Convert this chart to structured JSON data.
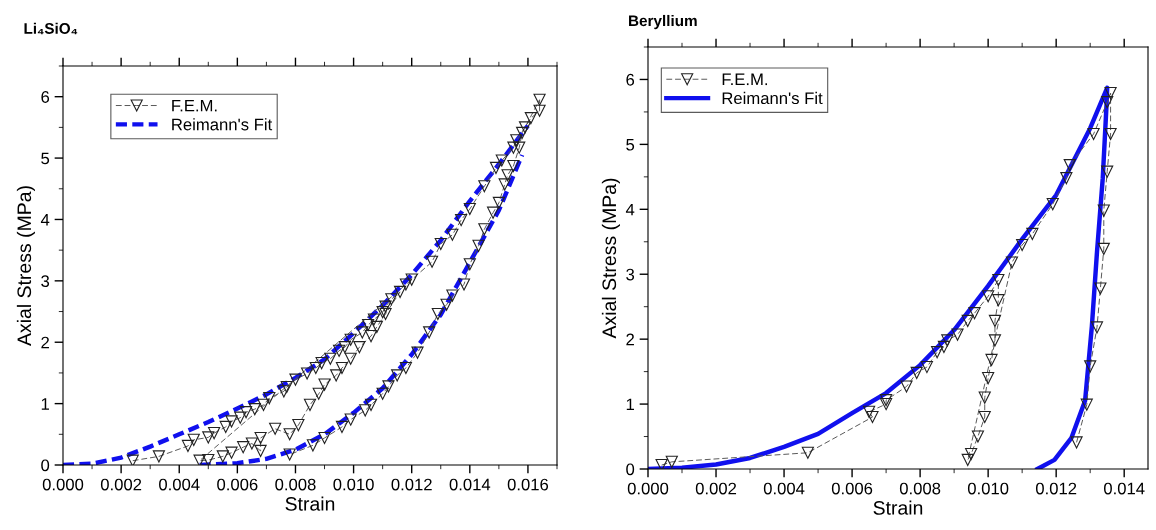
{
  "chart_data": [
    {
      "type": "line",
      "title": "Li₄SiO₄",
      "xlabel": "Strain",
      "ylabel": "Axial Stress (MPa)",
      "xlim": [
        0,
        0.017
      ],
      "ylim": [
        0,
        6.5
      ],
      "xticks": [
        {
          "value": 0,
          "label": "0.000"
        },
        {
          "value": 0.002,
          "label": "0.002"
        },
        {
          "value": 0.004,
          "label": "0.004"
        },
        {
          "value": 0.006,
          "label": "0.006"
        },
        {
          "value": 0.008,
          "label": "0.008"
        },
        {
          "value": 0.01,
          "label": "0.010"
        },
        {
          "value": 0.012,
          "label": "0.012"
        },
        {
          "value": 0.014,
          "label": "0.014"
        },
        {
          "value": 0.016,
          "label": "0.016"
        }
      ],
      "yticks": [
        0,
        1,
        2,
        3,
        4,
        5,
        6
      ],
      "legend": "top left",
      "grid": false,
      "series": [
        {
          "name": "F.E.M.",
          "color": "#555555",
          "marker": "triangle",
          "line_style": "dashed",
          "x": [
            0.0024,
            0.0033,
            0.0043,
            0.0045,
            0.005,
            0.0052,
            0.0056,
            0.0058,
            0.0061,
            0.0063,
            0.0066,
            0.0069,
            0.0071,
            0.0076,
            0.0077,
            0.008,
            0.0084,
            0.0087,
            0.0089,
            0.0092,
            0.0095,
            0.0097,
            0.0099,
            0.0103,
            0.0105,
            0.0107,
            0.011,
            0.0111,
            0.0113,
            0.0116,
            0.0111,
            0.0108,
            0.0106,
            0.0102,
            0.0099,
            0.0096,
            0.0094,
            0.009,
            0.0088,
            0.0085,
            0.0081,
            0.0078,
            0.0073,
            0.0068,
            0.0068,
            0.0065,
            0.0062,
            0.0058,
            0.0055,
            0.005,
            0.0047,
            0.0118,
            0.012,
            0.0127,
            0.013,
            0.0134,
            0.0137,
            0.014,
            0.0145,
            0.0149,
            0.0151,
            0.0155,
            0.0156,
            0.0159,
            0.0161,
            0.0164,
            0.0164,
            0.0158,
            0.0157,
            0.0155,
            0.0153,
            0.0152,
            0.015,
            0.0148,
            0.0145,
            0.0143,
            0.014,
            0.0138,
            0.0134,
            0.0132,
            0.0129,
            0.0126,
            0.0122,
            0.0118,
            0.0115,
            0.0112,
            0.011,
            0.0106,
            0.0104,
            0.0099,
            0.0096,
            0.009,
            0.0086,
            0.0078
          ],
          "values": [
            0.07,
            0.14,
            0.31,
            0.41,
            0.45,
            0.52,
            0.62,
            0.71,
            0.77,
            0.86,
            0.91,
            0.98,
            1.09,
            1.2,
            1.27,
            1.39,
            1.49,
            1.58,
            1.66,
            1.73,
            1.86,
            1.92,
            2.04,
            2.16,
            2.28,
            2.37,
            2.49,
            2.58,
            2.7,
            2.82,
            2.46,
            2.25,
            2.1,
            1.92,
            1.73,
            1.58,
            1.46,
            1.31,
            1.16,
            0.98,
            0.65,
            0.5,
            0.59,
            0.44,
            0.23,
            0.35,
            0.29,
            0.2,
            0.14,
            0.08,
            0.07,
            2.94,
            3.02,
            3.31,
            3.6,
            3.75,
            3.99,
            4.17,
            4.54,
            4.84,
            4.96,
            5.17,
            5.29,
            5.5,
            5.65,
            5.77,
            5.95,
            5.41,
            5.17,
            4.87,
            4.72,
            4.57,
            4.27,
            4.11,
            3.84,
            3.57,
            3.27,
            2.94,
            2.76,
            2.61,
            2.46,
            2.16,
            1.83,
            1.58,
            1.46,
            1.28,
            1.16,
            0.98,
            0.89,
            0.74,
            0.62,
            0.44,
            0.32,
            0.17
          ]
        },
        {
          "name": "Reimann's Fit",
          "color": "#1010ee",
          "marker": "none",
          "line_style": "dashed",
          "x": [
            0,
            0.001,
            0.002,
            0.003,
            0.004,
            0.005,
            0.006,
            0.007,
            0.008,
            0.009,
            0.01,
            0.011,
            0.012,
            0.013,
            0.014,
            0.015,
            0.016
          ],
          "values": [
            0,
            0.02,
            0.12,
            0.3,
            0.5,
            0.7,
            0.92,
            1.15,
            1.42,
            1.72,
            2.15,
            2.6,
            3.1,
            3.66,
            4.3,
            4.9,
            5.53
          ]
        },
        {
          "color": "#1010ee",
          "marker": "none",
          "line_style": "dashed",
          "x": [
            0.0047,
            0.006,
            0.007,
            0.008,
            0.009,
            0.01,
            0.011,
            0.012,
            0.013,
            0.014,
            0.015,
            0.0158
          ],
          "values": [
            0,
            0.03,
            0.1,
            0.25,
            0.5,
            0.85,
            1.25,
            1.8,
            2.45,
            3.3,
            4.15,
            5.05
          ]
        }
      ]
    },
    {
      "type": "line",
      "title": "Beryllium",
      "xlabel": "Strain",
      "ylabel": "Axial Stress (MPa)",
      "xlim": [
        0,
        0.0147
      ],
      "ylim": [
        0,
        6.5
      ],
      "xticks": [
        {
          "value": 0,
          "label": "0.000"
        },
        {
          "value": 0.002,
          "label": "0.002"
        },
        {
          "value": 0.004,
          "label": "0.004"
        },
        {
          "value": 0.006,
          "label": "0.006"
        },
        {
          "value": 0.008,
          "label": "0.008"
        },
        {
          "value": 0.01,
          "label": "0.010"
        },
        {
          "value": 0.012,
          "label": "0.012"
        },
        {
          "value": 0.014,
          "label": "0.014"
        }
      ],
      "yticks": [
        0,
        1,
        2,
        3,
        4,
        5,
        6
      ],
      "legend": "top left",
      "grid": false,
      "series": [
        {
          "name": "F.E.M.",
          "color": "#555555",
          "marker": "triangle",
          "line_style": "dashed",
          "x": [
            0.0004,
            0.0007,
            0.0047,
            0.0066,
            0.0065,
            0.007,
            0.007,
            0.0076,
            0.0079,
            0.0082,
            0.0085,
            0.0087,
            0.0088,
            0.0091,
            0.0094,
            0.0096,
            0.01,
            0.0103,
            0.0103,
            0.0102,
            0.0102,
            0.0101,
            0.01,
            0.0099,
            0.0099,
            0.0097,
            0.0095,
            0.0094,
            0.0107,
            0.011,
            0.0113,
            0.0119,
            0.0123,
            0.0124,
            0.0131,
            0.0135,
            0.0136,
            0.0136,
            0.0135,
            0.0134,
            0.0134,
            0.0133,
            0.0132,
            0.013,
            0.0129,
            0.0126
          ],
          "values": [
            0.06,
            0.11,
            0.25,
            0.8,
            0.88,
            1.0,
            1.06,
            1.27,
            1.48,
            1.57,
            1.8,
            1.88,
            1.98,
            2.07,
            2.28,
            2.4,
            2.66,
            2.91,
            2.6,
            2.28,
            1.98,
            1.68,
            1.4,
            1.1,
            0.8,
            0.5,
            0.23,
            0.14,
            3.18,
            3.45,
            3.62,
            4.08,
            4.48,
            4.68,
            5.16,
            5.65,
            5.79,
            5.16,
            4.58,
            3.98,
            3.39,
            2.78,
            2.18,
            1.58,
            0.99,
            0.41
          ]
        },
        {
          "name": "Reimann's Fit",
          "color": "#1010ee",
          "marker": "none",
          "line_style": "solid",
          "x": [
            0,
            0.001,
            0.002,
            0.003,
            0.004,
            0.005,
            0.006,
            0.007,
            0.008,
            0.009,
            0.01,
            0.011,
            0.012,
            0.013,
            0.0135,
            0.01348,
            0.01337,
            0.0132,
            0.01305,
            0.01285,
            0.01245,
            0.01195,
            0.01145
          ],
          "values": [
            0,
            0.02,
            0.07,
            0.17,
            0.34,
            0.54,
            0.86,
            1.17,
            1.6,
            2.14,
            2.82,
            3.54,
            4.22,
            5.25,
            5.87,
            5.6,
            4.48,
            3.34,
            2.2,
            1.05,
            0.48,
            0.14,
            0
          ]
        }
      ]
    }
  ]
}
